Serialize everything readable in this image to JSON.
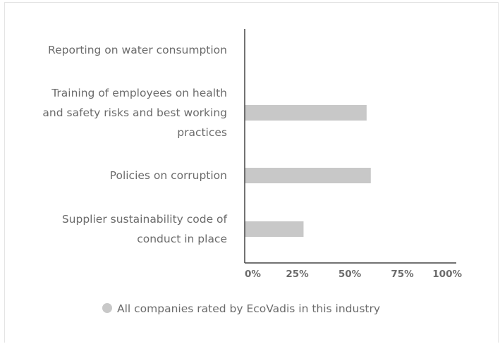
{
  "chart_data": {
    "type": "bar",
    "orientation": "horizontal",
    "categories": [
      "Reporting on water consumption",
      "Training of employees on health and safety risks and best working practices",
      "Policies on corruption",
      "Supplier sustainability code of conduct in place"
    ],
    "category_lines": [
      [
        "Reporting on water consumption"
      ],
      [
        "Training of employees on health",
        "and safety risks and best working",
        "practices"
      ],
      [
        "Policies on corruption"
      ],
      [
        "Supplier sustainability code of",
        "conduct in place"
      ]
    ],
    "series": [
      {
        "name": "All companies rated by EcoVadis in this industry",
        "color": "#c8c8c8",
        "values": [
          0,
          58,
          60,
          28
        ]
      }
    ],
    "xlim": [
      0,
      100
    ],
    "xticks": [
      "0%",
      "25%",
      "50%",
      "75%",
      "100%"
    ],
    "grid": false,
    "legend_position": "bottom"
  }
}
